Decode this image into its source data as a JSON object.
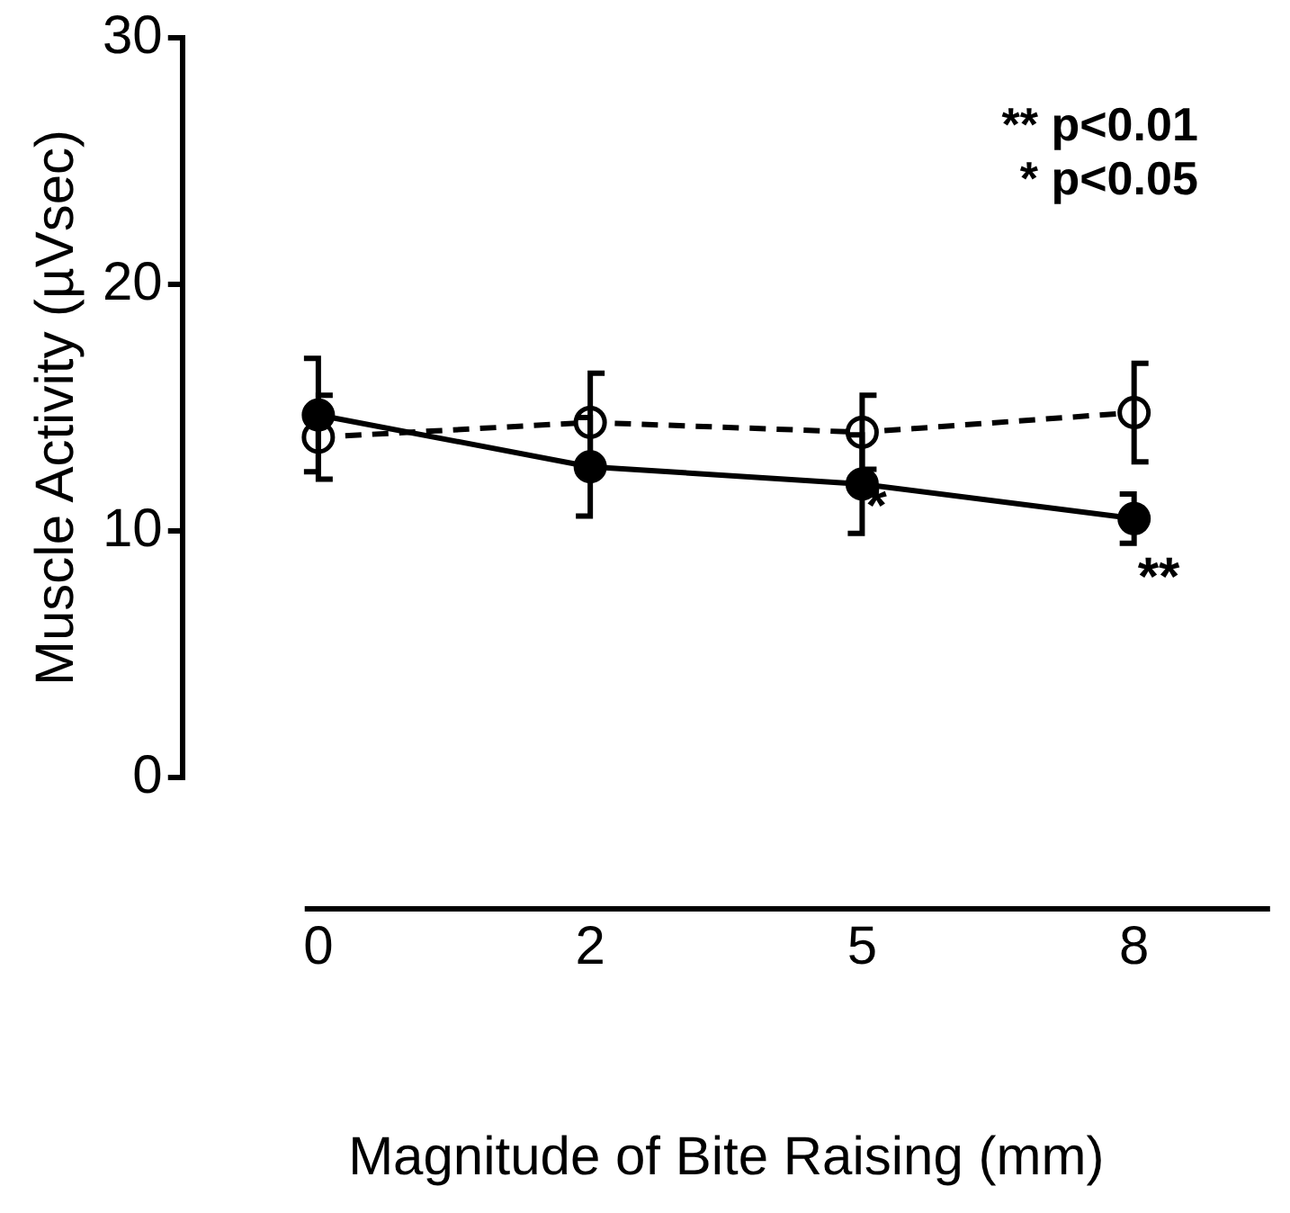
{
  "chart_data": {
    "type": "line",
    "xlabel": "Magnitude of Bite Raising (mm)",
    "ylabel": "Muscle Activity (µVsec)",
    "categories": [
      "0",
      "2",
      "5",
      "8"
    ],
    "series": [
      {
        "color": "#000000",
        "line_style": "solid",
        "values": [
          14.7,
          12.6,
          11.9,
          10.5
        ],
        "errors": [
          2.3,
          2.0,
          2.0,
          1.0
        ]
      },
      {
        "color": "#000000",
        "line_style": "dashed",
        "values": [
          13.8,
          14.4,
          14.0,
          14.8
        ],
        "errors": [
          1.7,
          2.0,
          1.5,
          2.0
        ]
      }
    ],
    "ylim": [
      0,
      30
    ],
    "yticks": [
      0,
      10,
      20,
      30
    ],
    "grid": false,
    "legend": false,
    "marker": "circle",
    "annotations": [
      "*",
      "**",
      "** p<0.01",
      "* p<0.05"
    ]
  }
}
